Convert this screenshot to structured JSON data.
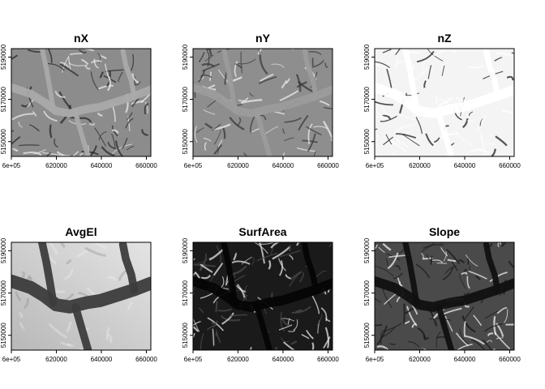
{
  "chart_data": [
    {
      "type": "heatmap",
      "title": "nX",
      "colormap": "grayscale",
      "xlabel": "",
      "ylabel": "",
      "xlim": [
        600000,
        662000
      ],
      "ylim": [
        5143000,
        5194000
      ],
      "x_ticks": [
        "6e+05",
        "620000",
        "640000",
        "660000"
      ],
      "y_ticks": [
        "5150000",
        "5170000",
        "5190000"
      ],
      "x_tick_values": [
        600000,
        620000,
        640000,
        660000
      ],
      "y_tick_values": [
        5150000,
        5170000,
        5190000
      ]
    },
    {
      "type": "heatmap",
      "title": "nY",
      "colormap": "grayscale",
      "xlabel": "",
      "ylabel": "",
      "xlim": [
        600000,
        662000
      ],
      "ylim": [
        5143000,
        5194000
      ],
      "x_ticks": [
        "6e+05",
        "620000",
        "640000",
        "660000"
      ],
      "y_ticks": [
        "5150000",
        "5170000",
        "5190000"
      ],
      "x_tick_values": [
        600000,
        620000,
        640000,
        660000
      ],
      "y_tick_values": [
        5150000,
        5170000,
        5190000
      ]
    },
    {
      "type": "heatmap",
      "title": "nZ",
      "colormap": "grayscale",
      "xlabel": "",
      "ylabel": "",
      "xlim": [
        600000,
        662000
      ],
      "ylim": [
        5143000,
        5194000
      ],
      "x_ticks": [
        "6e+05",
        "620000",
        "640000",
        "660000"
      ],
      "y_ticks": [
        "5150000",
        "5170000",
        "5190000"
      ],
      "x_tick_values": [
        600000,
        620000,
        640000,
        660000
      ],
      "y_tick_values": [
        5150000,
        5170000,
        5190000
      ]
    },
    {
      "type": "heatmap",
      "title": "AvgEl",
      "colormap": "grayscale",
      "xlabel": "",
      "ylabel": "",
      "xlim": [
        600000,
        662000
      ],
      "ylim": [
        5143000,
        5194000
      ],
      "x_ticks": [
        "6e+05",
        "620000",
        "640000",
        "660000"
      ],
      "y_ticks": [
        "5150000",
        "5170000",
        "5190000"
      ],
      "x_tick_values": [
        600000,
        620000,
        640000,
        660000
      ],
      "y_tick_values": [
        5150000,
        5170000,
        5190000
      ]
    },
    {
      "type": "heatmap",
      "title": "SurfArea",
      "colormap": "grayscale",
      "xlabel": "",
      "ylabel": "",
      "xlim": [
        600000,
        662000
      ],
      "ylim": [
        5143000,
        5194000
      ],
      "x_ticks": [
        "6e+05",
        "620000",
        "640000",
        "660000"
      ],
      "y_ticks": [
        "5150000",
        "5170000",
        "5190000"
      ],
      "x_tick_values": [
        600000,
        620000,
        640000,
        660000
      ],
      "y_tick_values": [
        5150000,
        5170000,
        5190000
      ]
    },
    {
      "type": "heatmap",
      "title": "Slope",
      "colormap": "grayscale",
      "xlabel": "",
      "ylabel": "",
      "xlim": [
        600000,
        662000
      ],
      "ylim": [
        5143000,
        5194000
      ],
      "x_ticks": [
        "6e+05",
        "620000",
        "640000",
        "660000"
      ],
      "y_ticks": [
        "5150000",
        "5170000",
        "5190000"
      ],
      "x_tick_values": [
        600000,
        620000,
        640000,
        660000
      ],
      "y_tick_values": [
        5150000,
        5170000,
        5190000
      ]
    }
  ]
}
